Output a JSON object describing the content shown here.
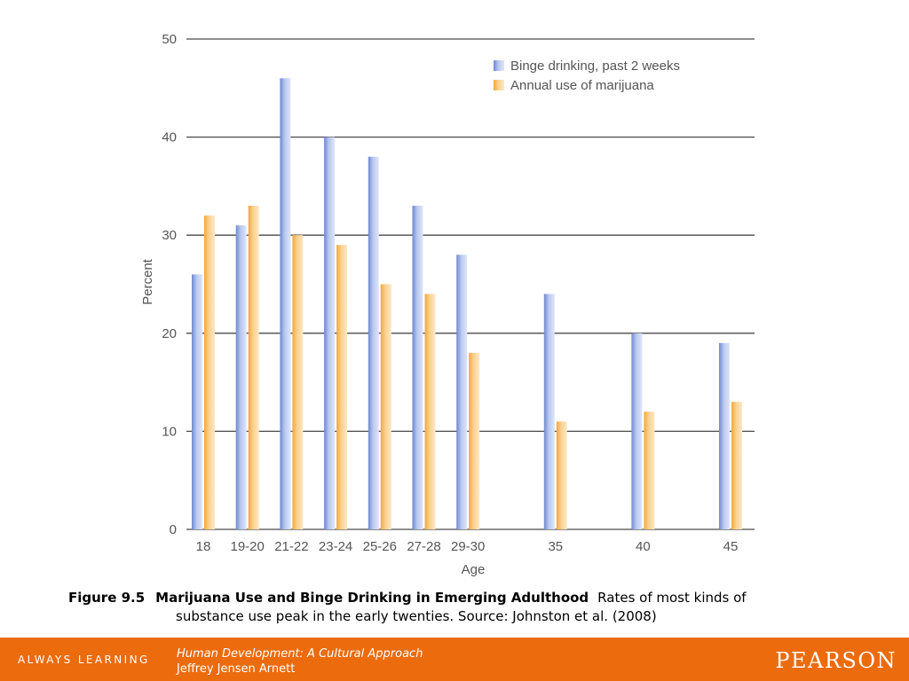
{
  "chart_data": {
    "type": "bar",
    "categories": [
      "18",
      "19-20",
      "21-22",
      "23-24",
      "25-26",
      "27-28",
      "29-30",
      "35",
      "40",
      "45"
    ],
    "series": [
      {
        "name": "Binge drinking, past 2 weeks",
        "values": [
          26,
          31,
          46,
          40,
          38,
          33,
          28,
          24,
          20,
          19
        ],
        "color": "#8ea4dc"
      },
      {
        "name": "Annual use of marijuana",
        "values": [
          32,
          33,
          30,
          29,
          25,
          24,
          18,
          11,
          12,
          13
        ],
        "color": "#f6bd60"
      }
    ],
    "xlabel": "Age",
    "ylabel": "Percent",
    "ylim": [
      0,
      50
    ],
    "yticks": [
      0,
      10,
      20,
      30,
      40,
      50
    ],
    "grid": true,
    "legend": "top-right"
  },
  "caption": {
    "label": "Figure 9.5",
    "title": "Marijuana Use and Binge Drinking in Emerging Adulthood",
    "text_line1": "Rates of most kinds of",
    "text_line2": "substance use peak in the early twenties. Source: Johnston et al. (2008)"
  },
  "footer": {
    "tagline": "ALWAYS LEARNING",
    "book_title": "Human Development: A Cultural Approach",
    "author": "Jeffrey Jensen Arnett",
    "brand": "PEARSON",
    "bar_color": "#ec6b0c"
  }
}
